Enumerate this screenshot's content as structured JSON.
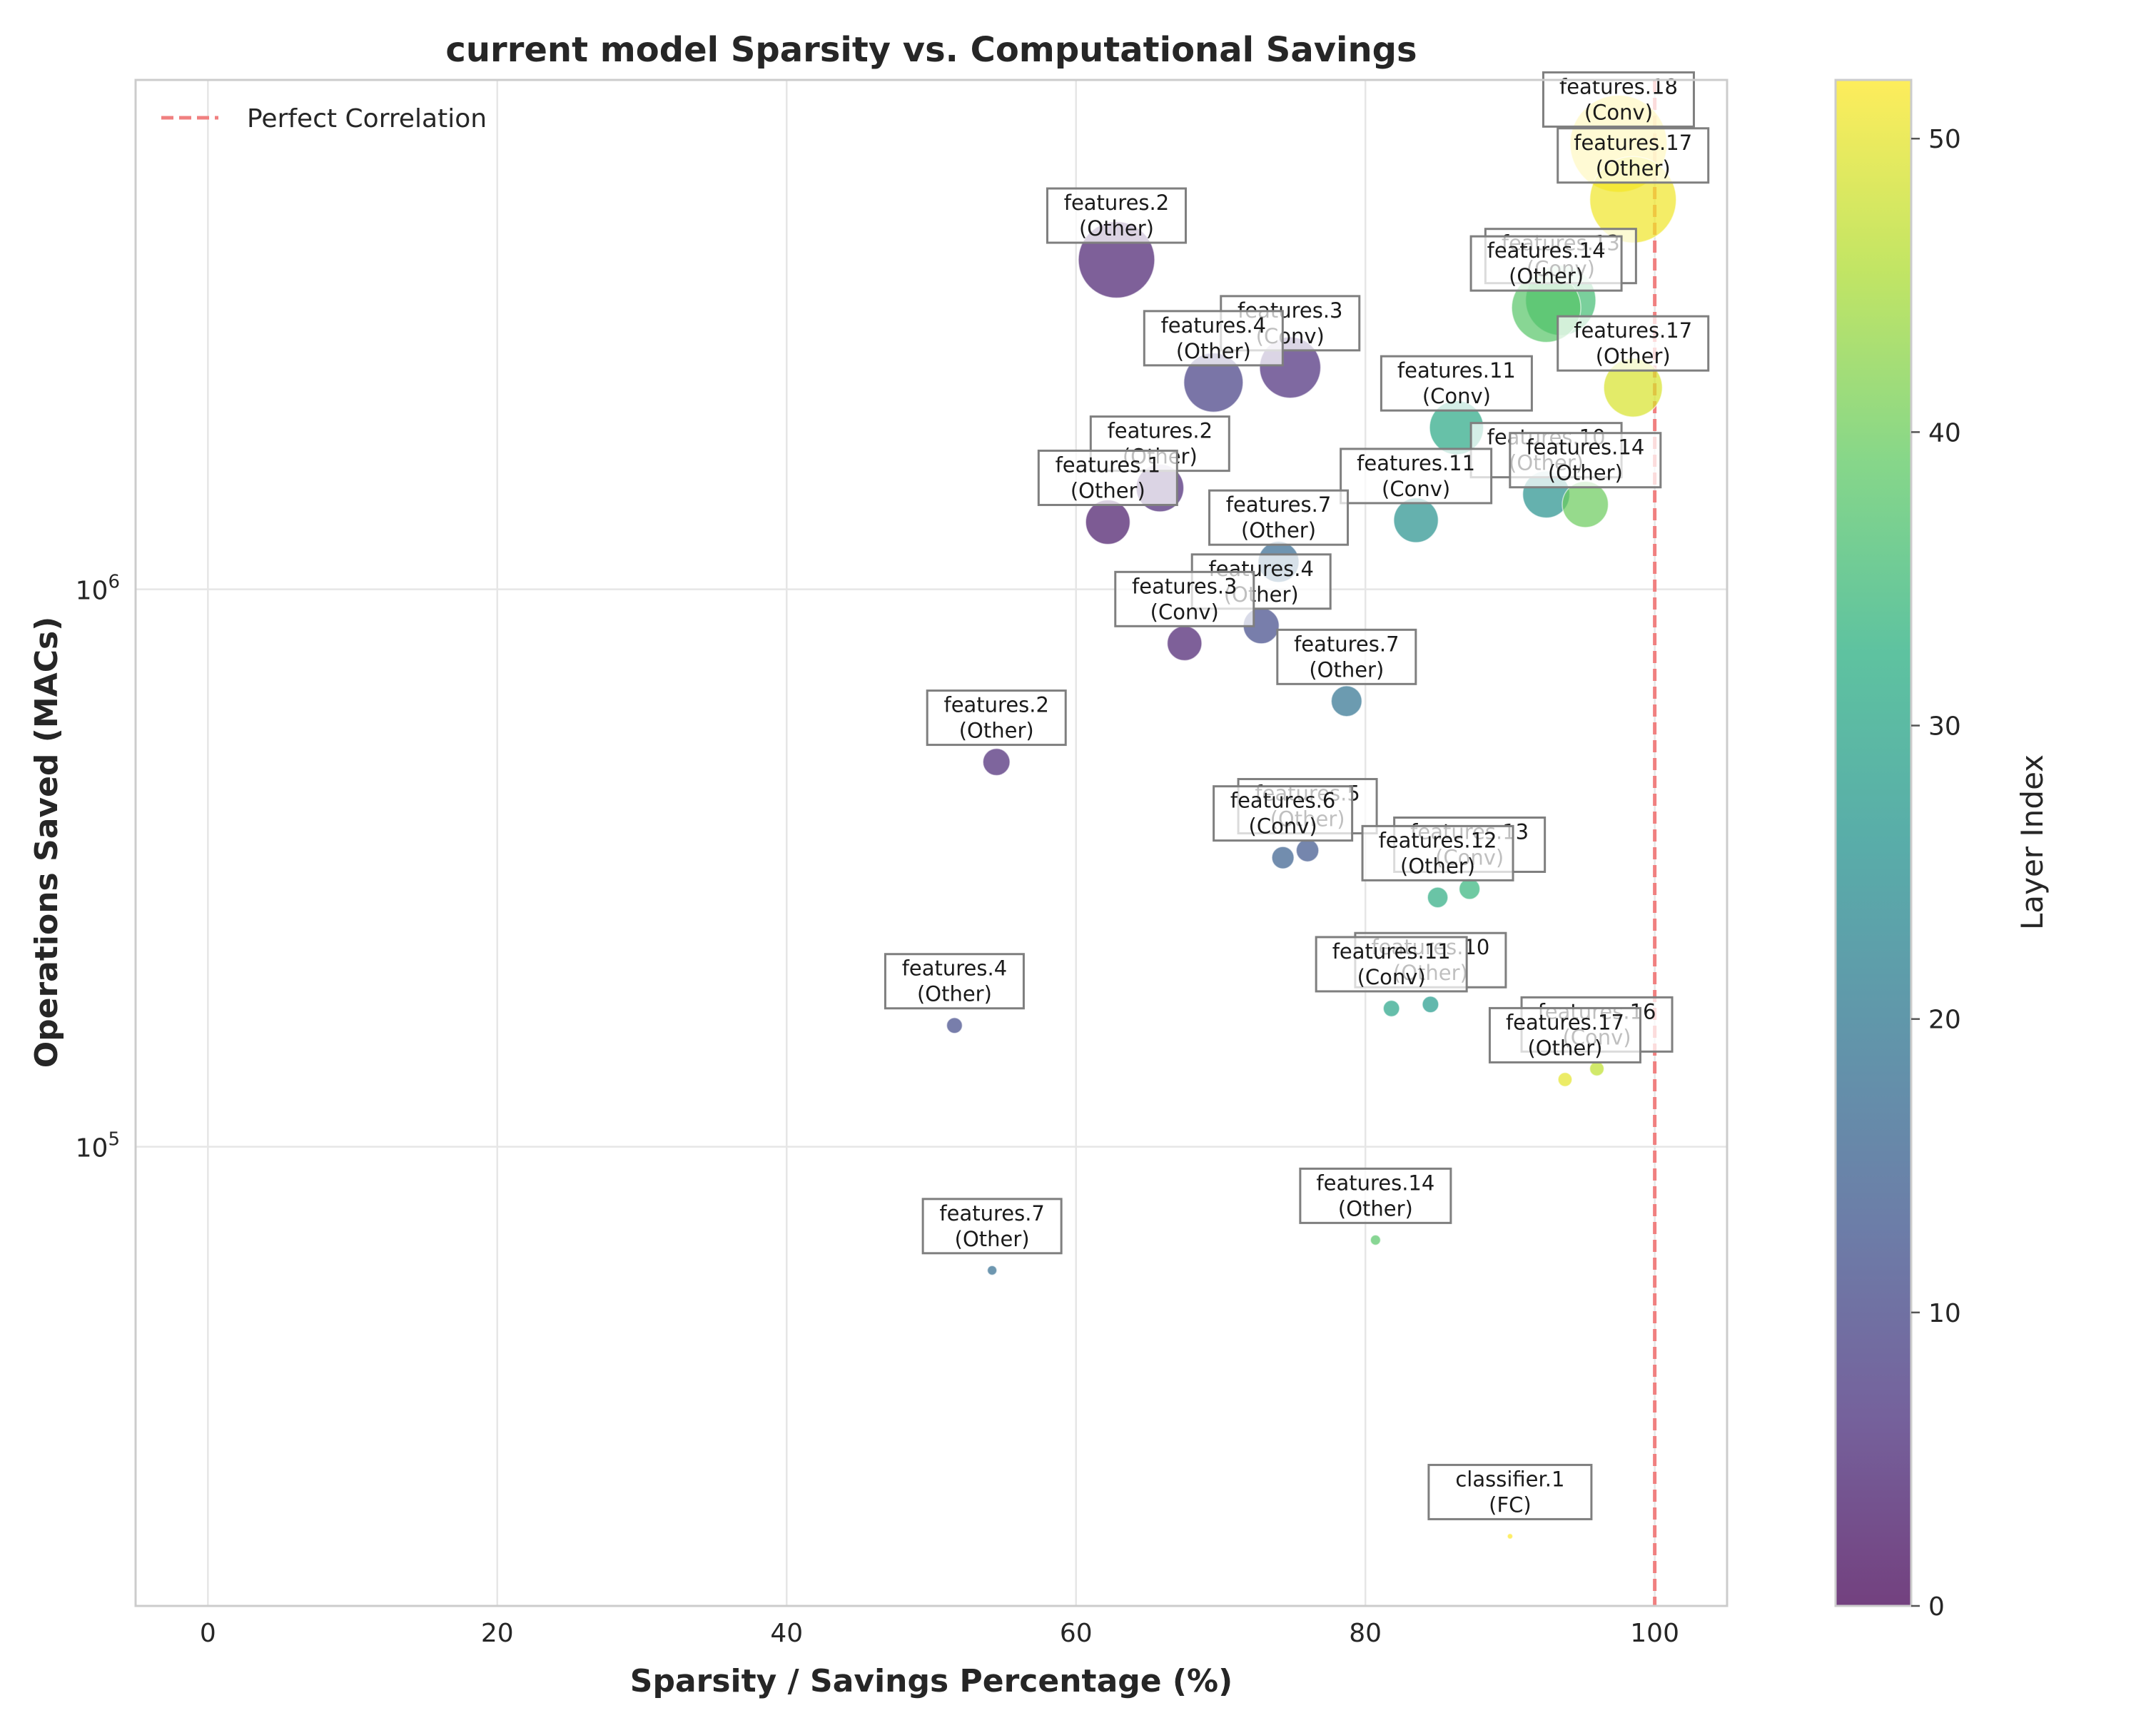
{
  "chart_data": {
    "type": "scatter",
    "title": "current model Sparsity vs. Computational Savings",
    "xlabel": "Sparsity / Savings Percentage (%)",
    "ylabel": "Operations Saved (MACs)",
    "xlim": [
      -5,
      105
    ],
    "ylim": [
      15000,
      8200000
    ],
    "yscale": "log",
    "x_ticks": [
      0,
      20,
      40,
      60,
      80,
      100
    ],
    "y_ticks": [
      {
        "value": 100000,
        "base": "10",
        "exp": "5"
      },
      {
        "value": 1000000,
        "base": "10",
        "exp": "6"
      }
    ],
    "grid": true,
    "reference_line": {
      "label": "Perfect Correlation",
      "x": 100,
      "color": "#f08080",
      "style": "dashed"
    },
    "legend_position": "top-left",
    "colorbar": {
      "label": "Layer Index",
      "min": 0,
      "max": 52,
      "ticks": [
        0,
        10,
        20,
        30,
        40,
        50
      ],
      "colormap": "viridis"
    },
    "points": [
      {
        "name": "features.18",
        "type": "Conv",
        "x": 97.5,
        "y": 6300000,
        "layer": 52,
        "size": 6300000
      },
      {
        "name": "features.17",
        "type": "Other",
        "x": 98.5,
        "y": 5000000,
        "layer": 51,
        "size": 5000000
      },
      {
        "name": "features.2",
        "type": "Other",
        "x": 62.8,
        "y": 3900000,
        "layer": 4,
        "size": 3900000
      },
      {
        "name": "features.13",
        "type": "Conv",
        "x": 93.5,
        "y": 3300000,
        "layer": 36,
        "size": 3300000
      },
      {
        "name": "features.14",
        "type": "Other",
        "x": 92.5,
        "y": 3200000,
        "layer": 38,
        "size": 3200000
      },
      {
        "name": "features.3",
        "type": "Conv",
        "x": 74.8,
        "y": 2500000,
        "layer": 6,
        "size": 2500000
      },
      {
        "name": "features.4",
        "type": "Other",
        "x": 69.5,
        "y": 2350000,
        "layer": 9,
        "size": 2350000
      },
      {
        "name": "features.17",
        "type": "Other",
        "x": 98.5,
        "y": 2300000,
        "layer": 49,
        "size": 2300000
      },
      {
        "name": "features.11",
        "type": "Conv",
        "x": 86.3,
        "y": 1950000,
        "layer": 31,
        "size": 1950000
      },
      {
        "name": "features.2",
        "type": "Other",
        "x": 65.8,
        "y": 1520000,
        "layer": 5,
        "size": 1520000
      },
      {
        "name": "features.10",
        "type": "Other",
        "x": 92.5,
        "y": 1480000,
        "layer": 26,
        "size": 1480000
      },
      {
        "name": "features.14",
        "type": "Other",
        "x": 95.2,
        "y": 1420000,
        "layer": 40,
        "size": 1420000
      },
      {
        "name": "features.11",
        "type": "Conv",
        "x": 83.5,
        "y": 1330000,
        "layer": 26,
        "size": 1330000
      },
      {
        "name": "features.1",
        "type": "Other",
        "x": 62.2,
        "y": 1320000,
        "layer": 3,
        "size": 1320000
      },
      {
        "name": "features.7",
        "type": "Other",
        "x": 74.0,
        "y": 1120000,
        "layer": 17,
        "size": 1120000
      },
      {
        "name": "features.4",
        "type": "Other",
        "x": 72.8,
        "y": 860000,
        "layer": 11,
        "size": 860000
      },
      {
        "name": "features.3",
        "type": "Conv",
        "x": 67.5,
        "y": 800000,
        "layer": 4,
        "size": 800000
      },
      {
        "name": "features.7",
        "type": "Other",
        "x": 78.7,
        "y": 630000,
        "layer": 19,
        "size": 630000
      },
      {
        "name": "features.2",
        "type": "Other",
        "x": 54.5,
        "y": 490000,
        "layer": 5,
        "size": 490000
      },
      {
        "name": "features.5",
        "type": "Other",
        "x": 76.0,
        "y": 340000,
        "layer": 13,
        "size": 340000
      },
      {
        "name": "features.6",
        "type": "Conv",
        "x": 74.3,
        "y": 330000,
        "layer": 15,
        "size": 330000
      },
      {
        "name": "features.13",
        "type": "Conv",
        "x": 87.2,
        "y": 290000,
        "layer": 34,
        "size": 290000
      },
      {
        "name": "features.12",
        "type": "Other",
        "x": 85.0,
        "y": 280000,
        "layer": 32,
        "size": 280000
      },
      {
        "name": "features.10",
        "type": "Other",
        "x": 84.5,
        "y": 180000,
        "layer": 28,
        "size": 180000
      },
      {
        "name": "features.11",
        "type": "Conv",
        "x": 81.8,
        "y": 177000,
        "layer": 30,
        "size": 177000
      },
      {
        "name": "features.4",
        "type": "Other",
        "x": 51.6,
        "y": 165000,
        "layer": 11,
        "size": 165000
      },
      {
        "name": "features.16",
        "type": "Conv",
        "x": 96.0,
        "y": 138000,
        "layer": 47,
        "size": 138000
      },
      {
        "name": "features.17",
        "type": "Other",
        "x": 93.8,
        "y": 132000,
        "layer": 50,
        "size": 132000
      },
      {
        "name": "features.14",
        "type": "Other",
        "x": 80.7,
        "y": 68000,
        "layer": 38,
        "size": 68000
      },
      {
        "name": "features.7",
        "type": "Other",
        "x": 54.2,
        "y": 60000,
        "layer": 18,
        "size": 60000
      },
      {
        "name": "classifier.1",
        "type": "FC",
        "x": 90.0,
        "y": 20000,
        "layer": 52,
        "size": 20000
      }
    ]
  }
}
